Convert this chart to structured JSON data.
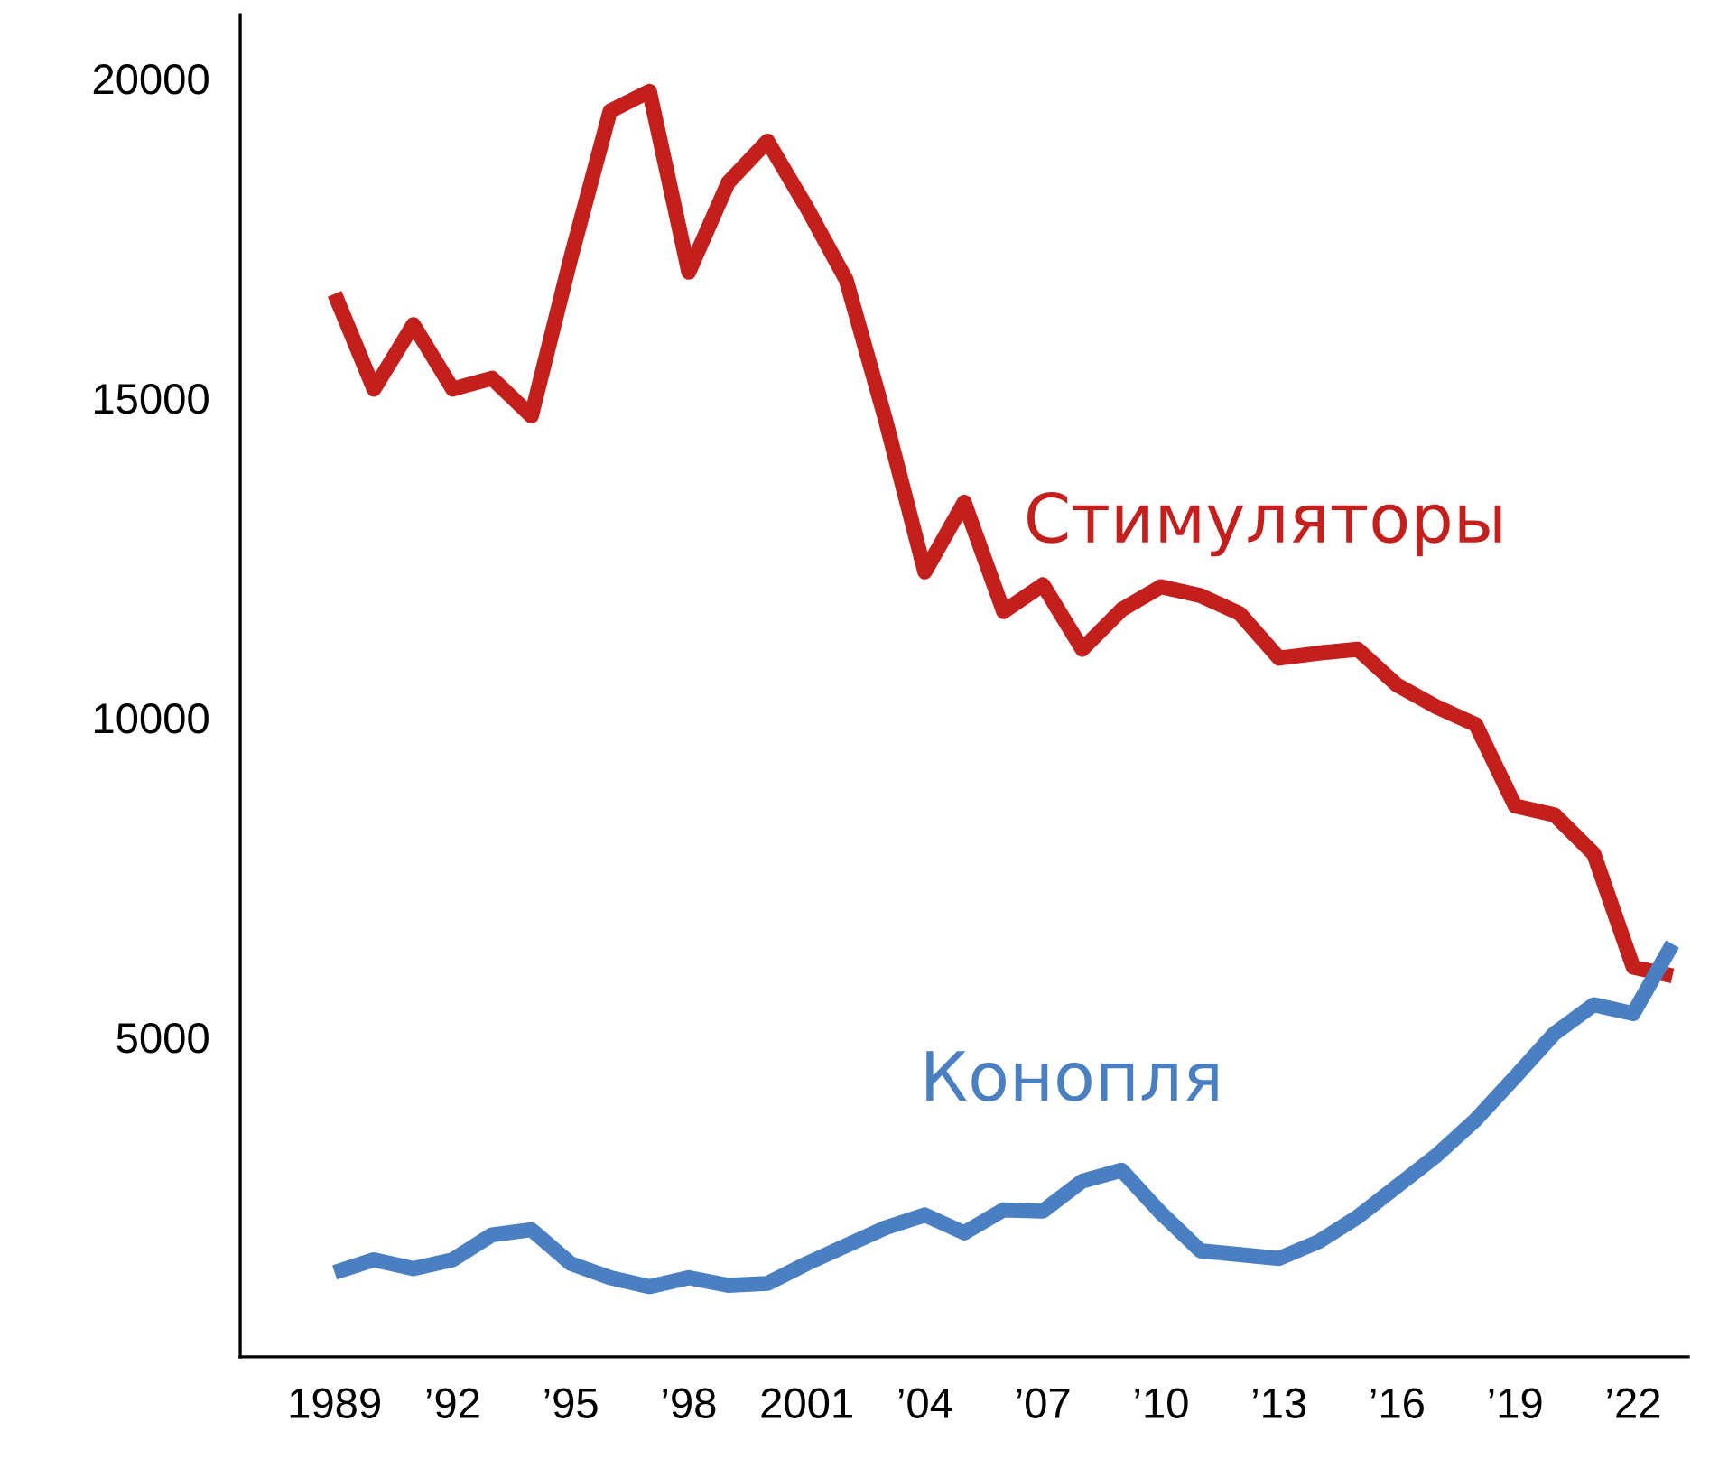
{
  "chart_data": {
    "type": "line",
    "x": [
      1989,
      1990,
      1991,
      1992,
      1993,
      1994,
      1995,
      1996,
      1997,
      1998,
      1999,
      2000,
      2001,
      2002,
      2003,
      2004,
      2005,
      2006,
      2007,
      2008,
      2009,
      2010,
      2011,
      2012,
      2013,
      2014,
      2015,
      2016,
      2017,
      2018,
      2019,
      2020,
      2021,
      2022,
      2023
    ],
    "series": [
      {
        "name": "Стимуляторы",
        "color": "#c21f1d",
        "values": [
          16630,
          15140,
          16150,
          15140,
          15310,
          14720,
          17190,
          19490,
          19800,
          16970,
          18370,
          19020,
          17980,
          16850,
          14660,
          12280,
          13370,
          11660,
          12080,
          11070,
          11690,
          12050,
          11910,
          11630,
          10930,
          11010,
          11070,
          10510,
          10170,
          9890,
          8620,
          8480,
          7870,
          6100,
          5960
        ]
      },
      {
        "name": "Конопля",
        "color": "#4a80c2",
        "values": [
          1320,
          1520,
          1380,
          1520,
          1910,
          1990,
          1460,
          1240,
          1100,
          1240,
          1120,
          1150,
          1460,
          1740,
          2020,
          2220,
          1940,
          2300,
          2280,
          2750,
          2920,
          2250,
          1660,
          1600,
          1540,
          1800,
          2190,
          2670,
          3150,
          3710,
          4380,
          5060,
          5510,
          5370,
          6460
        ]
      }
    ],
    "xlim": [
      1986.6,
      2023.4
    ],
    "ylim": [
      0,
      21000
    ],
    "xticks": [
      {
        "value": 1989,
        "label": "1989"
      },
      {
        "value": 1992,
        "label": "’92"
      },
      {
        "value": 1995,
        "label": "’95"
      },
      {
        "value": 1998,
        "label": "’98"
      },
      {
        "value": 2001,
        "label": "2001"
      },
      {
        "value": 2004,
        "label": "’04"
      },
      {
        "value": 2007,
        "label": "’07"
      },
      {
        "value": 2010,
        "label": "’10"
      },
      {
        "value": 2013,
        "label": "’13"
      },
      {
        "value": 2016,
        "label": "’16"
      },
      {
        "value": 2019,
        "label": "’19"
      },
      {
        "value": 2022,
        "label": "’22"
      }
    ],
    "yticks": [
      5000,
      10000,
      15000,
      20000
    ],
    "grid": false,
    "legend": false,
    "marker": "none",
    "line_style": "solid"
  }
}
